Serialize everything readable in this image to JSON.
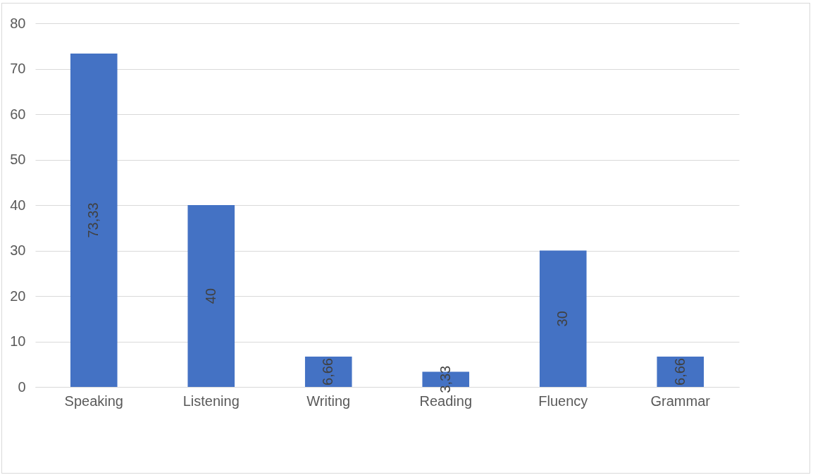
{
  "chart_data": {
    "type": "bar",
    "categories": [
      "Speaking",
      "Listening",
      "Writing",
      "Reading",
      "Fluency",
      "Grammar"
    ],
    "values": [
      73.33,
      40,
      6.66,
      3.33,
      30,
      6.66
    ],
    "value_labels": [
      "73,33",
      "40",
      "6,66",
      "3,33",
      "30",
      "6,66"
    ],
    "color": "#4472c4",
    "ylim": [
      0,
      80
    ],
    "yticks": [
      0,
      10,
      20,
      30,
      40,
      50,
      60,
      70,
      80
    ],
    "grid": "y"
  }
}
